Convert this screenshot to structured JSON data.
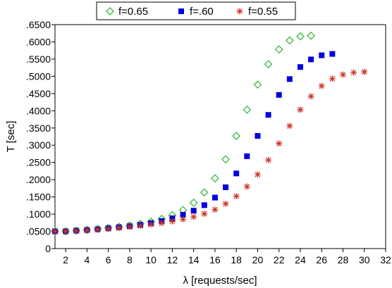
{
  "chart_data": {
    "type": "scatter",
    "title": "",
    "xlabel": "λ [requests/sec]",
    "ylabel": "T [sec]",
    "xlim": [
      1,
      32
    ],
    "ylim": [
      0,
      0.65
    ],
    "x_ticks": [
      2,
      4,
      6,
      8,
      10,
      12,
      14,
      16,
      18,
      20,
      22,
      24,
      26,
      28,
      30,
      32
    ],
    "y_ticks": [
      0,
      0.05,
      0.1,
      0.15,
      0.2,
      0.25,
      0.3,
      0.35,
      0.4,
      0.45,
      0.5,
      0.55,
      0.6,
      0.65
    ],
    "x_tick_labels": [
      "2",
      "4",
      "6",
      "8",
      "10",
      "12",
      "14",
      "16",
      "18",
      "20",
      "22",
      "24",
      "26",
      "28",
      "30",
      "32"
    ],
    "y_tick_labels": [
      "0",
      ".0500",
      ".1000",
      ".1500",
      ".2000",
      ".2500",
      ".3000",
      ".3500",
      ".4000",
      ".4500",
      ".5000",
      ".5500",
      ".6000",
      ".6500"
    ],
    "grid": false,
    "legend_position": "top",
    "series": [
      {
        "name": "f=0.65",
        "marker": "diamond-open",
        "color": "#3cb83c",
        "x": [
          1,
          2,
          3,
          4,
          5,
          6,
          7,
          8,
          9,
          10,
          11,
          12,
          13,
          14,
          15,
          16,
          17,
          18,
          19,
          20,
          21,
          22,
          23,
          24,
          25
        ],
        "y": [
          0.05,
          0.05,
          0.052,
          0.054,
          0.057,
          0.06,
          0.063,
          0.067,
          0.072,
          0.078,
          0.086,
          0.097,
          0.112,
          0.133,
          0.163,
          0.204,
          0.259,
          0.327,
          0.403,
          0.476,
          0.535,
          0.578,
          0.604,
          0.616,
          0.618
        ]
      },
      {
        "name": "f=.60",
        "marker": "square-filled",
        "color": "#0000dd",
        "x": [
          1,
          2,
          3,
          4,
          5,
          6,
          7,
          8,
          9,
          10,
          11,
          12,
          13,
          14,
          15,
          16,
          17,
          18,
          19,
          20,
          21,
          22,
          23,
          24,
          25,
          26,
          27
        ],
        "y": [
          0.05,
          0.05,
          0.052,
          0.054,
          0.056,
          0.059,
          0.062,
          0.065,
          0.069,
          0.074,
          0.08,
          0.088,
          0.098,
          0.11,
          0.126,
          0.148,
          0.178,
          0.218,
          0.268,
          0.327,
          0.388,
          0.446,
          0.492,
          0.527,
          0.549,
          0.561,
          0.565
        ]
      },
      {
        "name": "f=0.55",
        "marker": "star",
        "color": "#cc3322",
        "x": [
          1,
          2,
          3,
          4,
          5,
          6,
          7,
          8,
          9,
          10,
          11,
          12,
          13,
          14,
          15,
          16,
          17,
          18,
          19,
          20,
          21,
          22,
          23,
          24,
          25,
          26,
          27,
          28,
          29,
          30
        ],
        "y": [
          0.05,
          0.05,
          0.051,
          0.053,
          0.055,
          0.057,
          0.06,
          0.063,
          0.066,
          0.07,
          0.074,
          0.079,
          0.085,
          0.092,
          0.101,
          0.113,
          0.13,
          0.152,
          0.18,
          0.215,
          0.257,
          0.305,
          0.356,
          0.403,
          0.442,
          0.472,
          0.493,
          0.505,
          0.511,
          0.513
        ]
      }
    ]
  }
}
